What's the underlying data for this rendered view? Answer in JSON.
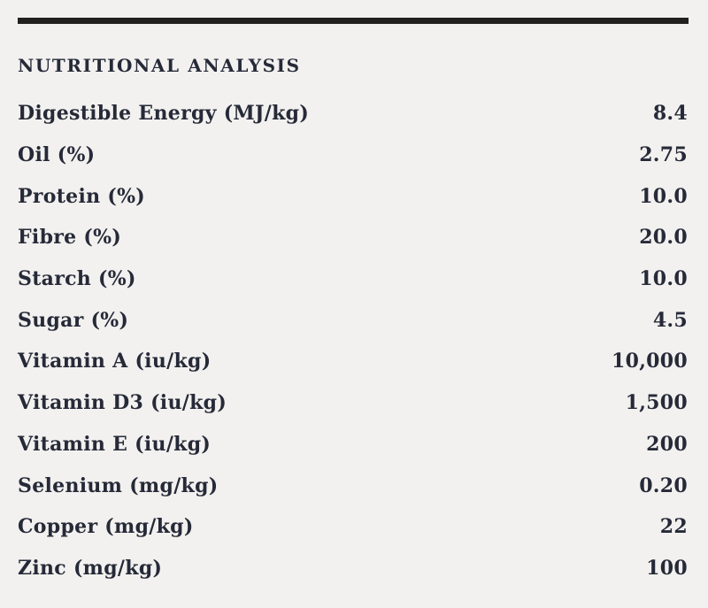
{
  "section": {
    "title": "NUTRITIONAL ANALYSIS"
  },
  "table": {
    "rows": [
      {
        "label": "Digestible Energy (MJ/kg)",
        "value": "8.4"
      },
      {
        "label": "Oil (%)",
        "value": "2.75"
      },
      {
        "label": "Protein (%)",
        "value": "10.0"
      },
      {
        "label": "Fibre (%)",
        "value": "20.0"
      },
      {
        "label": "Starch (%)",
        "value": "10.0"
      },
      {
        "label": "Sugar (%)",
        "value": "4.5"
      },
      {
        "label": "Vitamin A (iu/kg)",
        "value": "10,000"
      },
      {
        "label": "Vitamin D3 (iu/kg)",
        "value": "1,500"
      },
      {
        "label": "Vitamin E (iu/kg)",
        "value": "200"
      },
      {
        "label": "Selenium (mg/kg)",
        "value": "0.20"
      },
      {
        "label": "Copper (mg/kg)",
        "value": "22"
      },
      {
        "label": "Zinc (mg/kg)",
        "value": "100"
      }
    ]
  },
  "colors": {
    "background": "#f2f1ef",
    "text": "#262a38",
    "divider": "#21201e"
  }
}
